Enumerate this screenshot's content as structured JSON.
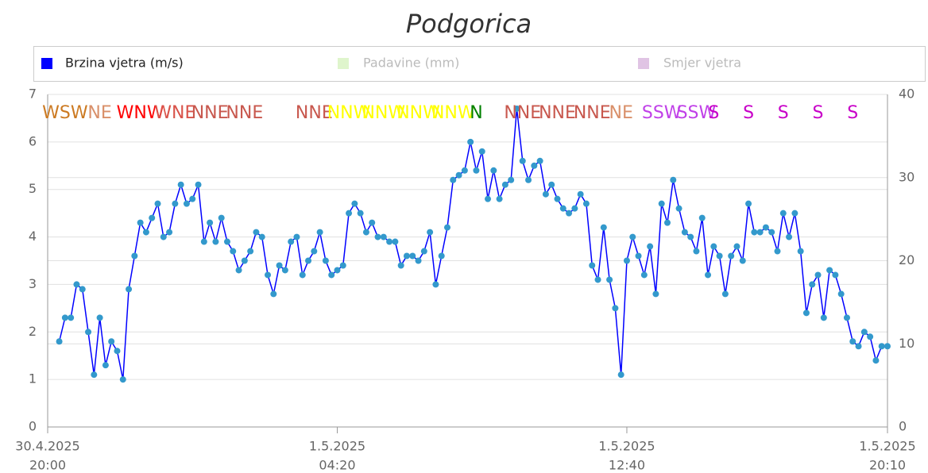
{
  "chart_data": {
    "type": "line",
    "title": "Podgorica",
    "x": [
      "30.4.2025 20:20",
      "30.4.2025 20:30",
      "30.4.2025 20:40",
      "30.4.2025 20:50",
      "30.4.2025 21:00",
      "30.4.2025 21:10",
      "30.4.2025 21:20",
      "30.4.2025 21:30",
      "30.4.2025 21:40",
      "30.4.2025 21:50",
      "30.4.2025 22:00",
      "30.4.2025 22:10",
      "30.4.2025 22:20",
      "30.4.2025 22:30",
      "30.4.2025 22:40",
      "30.4.2025 22:50",
      "30.4.2025 23:00",
      "30.4.2025 23:10",
      "30.4.2025 23:20",
      "30.4.2025 23:30",
      "30.4.2025 23:40",
      "30.4.2025 23:50",
      "1.5.2025 00:00",
      "1.5.2025 00:10",
      "1.5.2025 00:20",
      "1.5.2025 00:30",
      "1.5.2025 00:40",
      "1.5.2025 00:50",
      "1.5.2025 01:00",
      "1.5.2025 01:10",
      "1.5.2025 01:20",
      "1.5.2025 01:30",
      "1.5.2025 01:40",
      "1.5.2025 01:50",
      "1.5.2025 02:00",
      "1.5.2025 02:10",
      "1.5.2025 02:20",
      "1.5.2025 02:30",
      "1.5.2025 02:40",
      "1.5.2025 02:50",
      "1.5.2025 03:00",
      "1.5.2025 03:10",
      "1.5.2025 03:20",
      "1.5.2025 03:30",
      "1.5.2025 03:40",
      "1.5.2025 03:50",
      "1.5.2025 04:00",
      "1.5.2025 04:10",
      "1.5.2025 04:20",
      "1.5.2025 04:30",
      "1.5.2025 04:40",
      "1.5.2025 04:50",
      "1.5.2025 05:00",
      "1.5.2025 05:10",
      "1.5.2025 05:20",
      "1.5.2025 05:30",
      "1.5.2025 05:40",
      "1.5.2025 05:50",
      "1.5.2025 06:00",
      "1.5.2025 06:10",
      "1.5.2025 06:20",
      "1.5.2025 06:30",
      "1.5.2025 06:40",
      "1.5.2025 06:50",
      "1.5.2025 07:00",
      "1.5.2025 07:10",
      "1.5.2025 07:20",
      "1.5.2025 07:30",
      "1.5.2025 07:40",
      "1.5.2025 07:50",
      "1.5.2025 08:00",
      "1.5.2025 08:10",
      "1.5.2025 08:20",
      "1.5.2025 08:30",
      "1.5.2025 08:40",
      "1.5.2025 08:50",
      "1.5.2025 09:00",
      "1.5.2025 09:10",
      "1.5.2025 09:20",
      "1.5.2025 09:30",
      "1.5.2025 09:40",
      "1.5.2025 09:50",
      "1.5.2025 10:00",
      "1.5.2025 10:10",
      "1.5.2025 10:20",
      "1.5.2025 10:30",
      "1.5.2025 10:40",
      "1.5.2025 10:50",
      "1.5.2025 11:00",
      "1.5.2025 11:10",
      "1.5.2025 11:20",
      "1.5.2025 11:30",
      "1.5.2025 11:40",
      "1.5.2025 11:50",
      "1.5.2025 12:00",
      "1.5.2025 12:10",
      "1.5.2025 12:20",
      "1.5.2025 12:30",
      "1.5.2025 12:40",
      "1.5.2025 12:50",
      "1.5.2025 13:00",
      "1.5.2025 13:10",
      "1.5.2025 13:20",
      "1.5.2025 13:30",
      "1.5.2025 13:40",
      "1.5.2025 13:50",
      "1.5.2025 14:00",
      "1.5.2025 14:10",
      "1.5.2025 14:20",
      "1.5.2025 14:30",
      "1.5.2025 14:40",
      "1.5.2025 14:50",
      "1.5.2025 15:00",
      "1.5.2025 15:10",
      "1.5.2025 15:20",
      "1.5.2025 15:30",
      "1.5.2025 15:40",
      "1.5.2025 15:50",
      "1.5.2025 16:00",
      "1.5.2025 16:10",
      "1.5.2025 16:20",
      "1.5.2025 16:30",
      "1.5.2025 16:40",
      "1.5.2025 16:50",
      "1.5.2025 17:00",
      "1.5.2025 17:10",
      "1.5.2025 17:20",
      "1.5.2025 17:30",
      "1.5.2025 17:40",
      "1.5.2025 17:50",
      "1.5.2025 18:00",
      "1.5.2025 18:10",
      "1.5.2025 18:20",
      "1.5.2025 18:30",
      "1.5.2025 18:40",
      "1.5.2025 18:50",
      "1.5.2025 19:00",
      "1.5.2025 19:10",
      "1.5.2025 19:20",
      "1.5.2025 19:30",
      "1.5.2025 19:40",
      "1.5.2025 19:50",
      "1.5.2025 20:00",
      "1.5.2025 20:10"
    ],
    "series": [
      {
        "name": "Brzina vjetra (m/s)",
        "color": "#0000ff",
        "marker_color": "#3399cc",
        "values": [
          1.8,
          2.3,
          2.3,
          3.0,
          2.9,
          2.0,
          1.1,
          2.3,
          1.3,
          1.8,
          1.6,
          1.0,
          2.9,
          3.6,
          4.3,
          4.1,
          4.4,
          4.7,
          4.0,
          4.1,
          4.7,
          5.1,
          4.7,
          4.8,
          5.1,
          3.9,
          4.3,
          3.9,
          4.4,
          3.9,
          3.7,
          3.3,
          3.5,
          3.7,
          4.1,
          4.0,
          3.2,
          2.8,
          3.4,
          3.3,
          3.9,
          4.0,
          3.2,
          3.5,
          3.7,
          4.1,
          3.5,
          3.2,
          3.3,
          3.4,
          4.5,
          4.7,
          4.5,
          4.1,
          4.3,
          4.0,
          4.0,
          3.9,
          3.9,
          3.4,
          3.6,
          3.6,
          3.5,
          3.7,
          4.1,
          3.0,
          3.6,
          4.2,
          5.2,
          5.3,
          5.4,
          6.0,
          5.4,
          5.8,
          4.8,
          5.4,
          4.8,
          5.1,
          5.2,
          6.7,
          5.6,
          5.2,
          5.5,
          5.6,
          4.9,
          5.1,
          4.8,
          4.6,
          4.5,
          4.6,
          4.9,
          4.7,
          3.4,
          3.1,
          4.2,
          3.1,
          2.5,
          1.1,
          3.5,
          4.0,
          3.6,
          3.2,
          3.8,
          2.8,
          4.7,
          4.3,
          5.2,
          4.6,
          4.1,
          4.0,
          3.7,
          4.4,
          3.2,
          3.8,
          3.6,
          2.8,
          3.6,
          3.8,
          3.5,
          4.7,
          4.1,
          4.1,
          4.2,
          4.1,
          3.7,
          4.5,
          4.0,
          4.5,
          3.7,
          2.4,
          3.0,
          3.2,
          2.3,
          3.3,
          3.2,
          2.8,
          2.3,
          1.8,
          1.7,
          2.0,
          1.9,
          1.4,
          1.7,
          1.7
        ]
      }
    ],
    "hidden_series": [
      {
        "name": "Padavine (mm)",
        "color": "#dff5cc"
      },
      {
        "name": "Smjer vjetra",
        "color": "#e0c4e4"
      }
    ],
    "directions": [
      {
        "x": "30.4.2025 20:30",
        "label": "WSW",
        "color": "#cc7a22"
      },
      {
        "x": "30.4.2025 21:30",
        "label": "NE",
        "color": "#d9906a"
      },
      {
        "x": "30.4.2025 22:40",
        "label": "WNW",
        "color": "#ff0000"
      },
      {
        "x": "30.4.2025 23:40",
        "label": "WNE",
        "color": "#d9534a"
      },
      {
        "x": "1.5.2025 00:40",
        "label": "NNE",
        "color": "#c8584e"
      },
      {
        "x": "1.5.2025 01:40",
        "label": "NNE",
        "color": "#c8584e"
      },
      {
        "x": "1.5.2025 03:40",
        "label": "NNE",
        "color": "#c8584e"
      },
      {
        "x": "1.5.2025 04:40",
        "label": "NNW",
        "color": "#ffff00"
      },
      {
        "x": "1.5.2025 05:40",
        "label": "NNW",
        "color": "#ffff00"
      },
      {
        "x": "1.5.2025 06:40",
        "label": "NNW",
        "color": "#ffff00"
      },
      {
        "x": "1.5.2025 07:40",
        "label": "NNW",
        "color": "#ffff00"
      },
      {
        "x": "1.5.2025 08:20",
        "label": "N",
        "color": "#008000"
      },
      {
        "x": "1.5.2025 09:40",
        "label": "NNE",
        "color": "#c8584e"
      },
      {
        "x": "1.5.2025 10:40",
        "label": "NNE",
        "color": "#c8584e"
      },
      {
        "x": "1.5.2025 11:40",
        "label": "NNE",
        "color": "#c8584e"
      },
      {
        "x": "1.5.2025 12:30",
        "label": "NE",
        "color": "#d9906a"
      },
      {
        "x": "1.5.2025 13:40",
        "label": "SSW",
        "color": "#c040e8"
      },
      {
        "x": "1.5.2025 14:40",
        "label": "SSW",
        "color": "#c040e8"
      },
      {
        "x": "1.5.2025 15:10",
        "label": "S",
        "color": "#c800c8"
      },
      {
        "x": "1.5.2025 16:10",
        "label": "S",
        "color": "#c800c8"
      },
      {
        "x": "1.5.2025 17:10",
        "label": "S",
        "color": "#c800c8"
      },
      {
        "x": "1.5.2025 18:10",
        "label": "S",
        "color": "#c800c8"
      },
      {
        "x": "1.5.2025 19:10",
        "label": "S",
        "color": "#c800c8"
      }
    ],
    "xlim": [
      "30.4.2025 20:00",
      "1.5.2025 20:10"
    ],
    "xticks": [
      {
        "value": "30.4.2025 20:00",
        "label": [
          "30.4.2025",
          "20:00"
        ]
      },
      {
        "value": "1.5.2025 04:20",
        "label": [
          "1.5.2025",
          "04:20"
        ]
      },
      {
        "value": "1.5.2025 12:40",
        "label": [
          "1.5.2025",
          "12:40"
        ]
      },
      {
        "value": "1.5.2025 20:10",
        "label": [
          "1.5.2025",
          "20:10"
        ]
      }
    ],
    "ylim": [
      0,
      7
    ],
    "yticks": [
      0,
      1,
      2,
      3,
      4,
      5,
      6,
      7
    ],
    "y2lim": [
      0,
      40
    ],
    "y2ticks": [
      0,
      10,
      20,
      30,
      40
    ],
    "grid": true
  }
}
